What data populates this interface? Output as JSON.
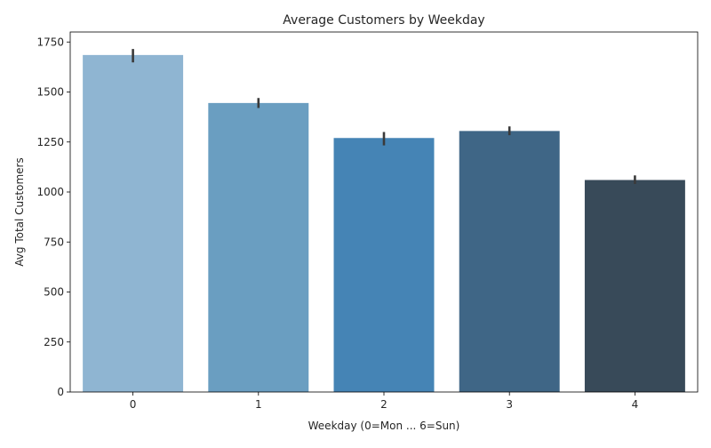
{
  "chart_data": {
    "type": "bar",
    "title": "Average Customers by Weekday",
    "xlabel": "Weekday (0=Mon ... 6=Sun)",
    "ylabel": "Avg Total Customers",
    "categories": [
      "0",
      "1",
      "2",
      "3",
      "4"
    ],
    "values": [
      1685,
      1445,
      1270,
      1305,
      1060
    ],
    "error_bars": [
      [
        1648,
        1715
      ],
      [
        1420,
        1470
      ],
      [
        1233,
        1300
      ],
      [
        1284,
        1328
      ],
      [
        1040,
        1083
      ]
    ],
    "bar_colors": [
      "#8fb5d2",
      "#6a9ec1",
      "#4584b5",
      "#3f6686",
      "#384a59"
    ],
    "ylim": [
      0,
      1800
    ],
    "yticks": [
      0,
      250,
      500,
      750,
      1000,
      1250,
      1500,
      1750
    ],
    "grid": false,
    "legend": "none"
  }
}
